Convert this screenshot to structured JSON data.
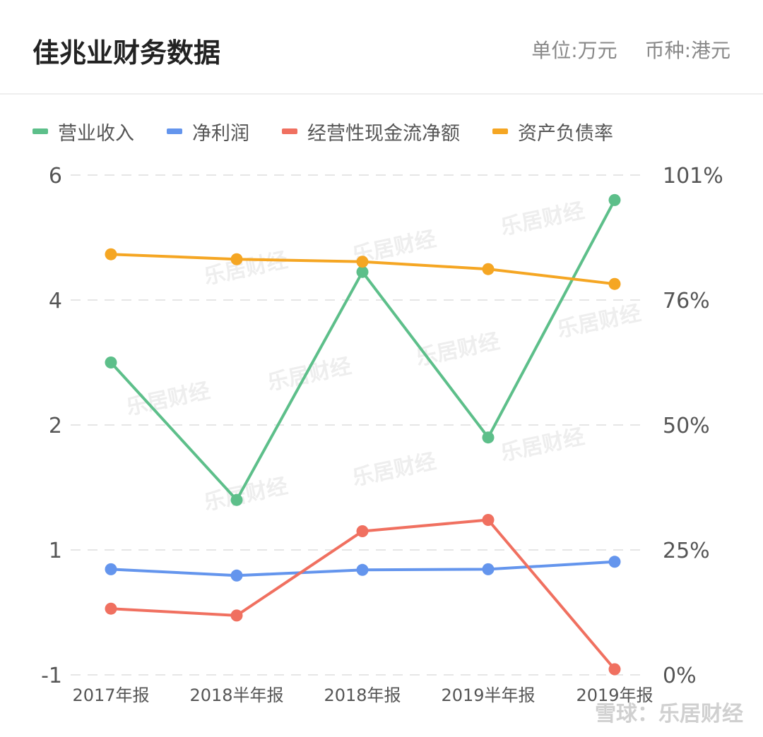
{
  "header": {
    "title": "佳兆业财务数据",
    "unit": "单位:万元",
    "currency": "币种:港元"
  },
  "footer": {
    "watermark": "雪球：乐居财经"
  },
  "chart_data": {
    "type": "line",
    "categories": [
      "2017年报",
      "2018半年报",
      "2018年报",
      "2019半年报",
      "2019年报"
    ],
    "y_left_ticks": [
      "6",
      "4",
      "2",
      "1",
      "-1"
    ],
    "y_right_ticks": [
      "101%",
      "76%",
      "50%",
      "25%",
      "0%"
    ],
    "grid": "dashed-horizontal",
    "legend_position": "top-left",
    "series": [
      {
        "name": "营业收入",
        "color": "#5dbf8a",
        "axis": "left",
        "values": [
          3.0,
          1.4,
          4.45,
          1.9,
          5.6
        ]
      },
      {
        "name": "净利润",
        "color": "#6495ed",
        "axis": "left",
        "values": [
          0.69,
          0.59,
          0.68,
          0.69,
          0.81
        ]
      },
      {
        "name": "经营性现金流净额",
        "color": "#f07060",
        "axis": "left",
        "values": [
          0.06,
          -0.05,
          1.15,
          1.24,
          -0.91
        ]
      },
      {
        "name": "资产负债率",
        "color": "#f5a623",
        "axis": "right",
        "values": [
          0.85,
          0.84,
          0.835,
          0.82,
          0.79
        ]
      }
    ]
  }
}
